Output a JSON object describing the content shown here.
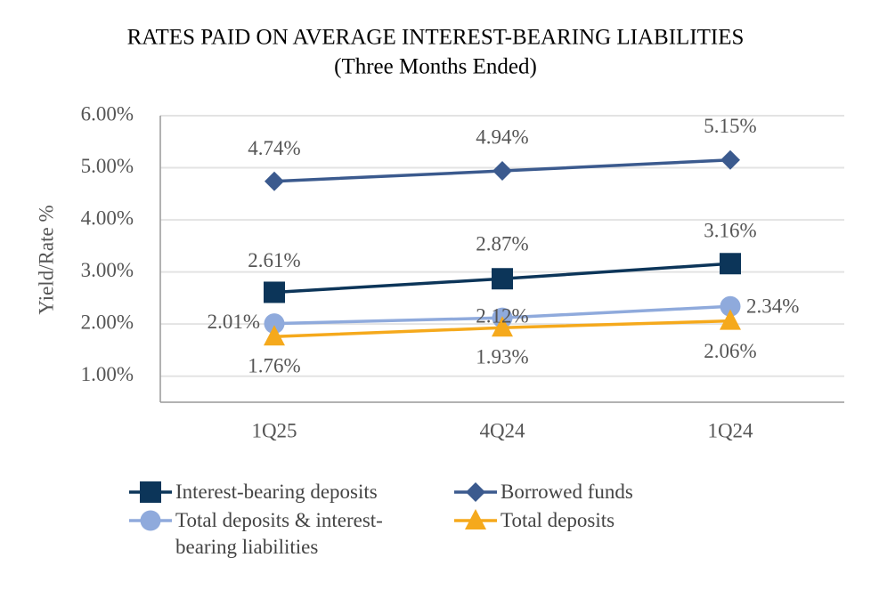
{
  "chart_data": {
    "type": "line",
    "title": "RATES PAID ON AVERAGE INTEREST-BEARING LIABILITIES",
    "subtitle": "(Three Months Ended)",
    "y_label": "Yield/Rate %",
    "categories": [
      "1Q25",
      "4Q24",
      "1Q24"
    ],
    "series": [
      {
        "name": "Interest-bearing deposits",
        "color": "#0c3559",
        "marker": "square",
        "values": [
          2.61,
          2.87,
          3.16
        ],
        "value_labels": [
          "2.61%",
          "2.87%",
          "3.16%"
        ]
      },
      {
        "name": "Borrowed funds",
        "color": "#3b5a8e",
        "marker": "diamond",
        "values": [
          4.74,
          4.94,
          5.15
        ],
        "value_labels": [
          "4.74%",
          "4.94%",
          "5.15%"
        ]
      },
      {
        "name": "Total deposits & interest-bearing liabilities",
        "color": "#8faadc",
        "marker": "circle",
        "values": [
          2.01,
          2.12,
          2.34
        ],
        "value_labels": [
          "2.01%",
          "2.12%",
          "2.34%"
        ]
      },
      {
        "name": "Total deposits",
        "color": "#f5a91c",
        "marker": "triangle",
        "values": [
          1.76,
          1.93,
          2.06
        ],
        "value_labels": [
          "1.76%",
          "1.93%",
          "2.06%"
        ]
      }
    ],
    "ylim": [
      0.5,
      6.0
    ],
    "yticks": [
      {
        "value": 1,
        "label": "1.00%"
      },
      {
        "value": 2,
        "label": "2.00%"
      },
      {
        "value": 3,
        "label": "3.00%"
      },
      {
        "value": 4,
        "label": "4.00%"
      },
      {
        "value": 5,
        "label": "5.00%"
      },
      {
        "value": 6,
        "label": "6.00%"
      }
    ],
    "grid": true
  }
}
